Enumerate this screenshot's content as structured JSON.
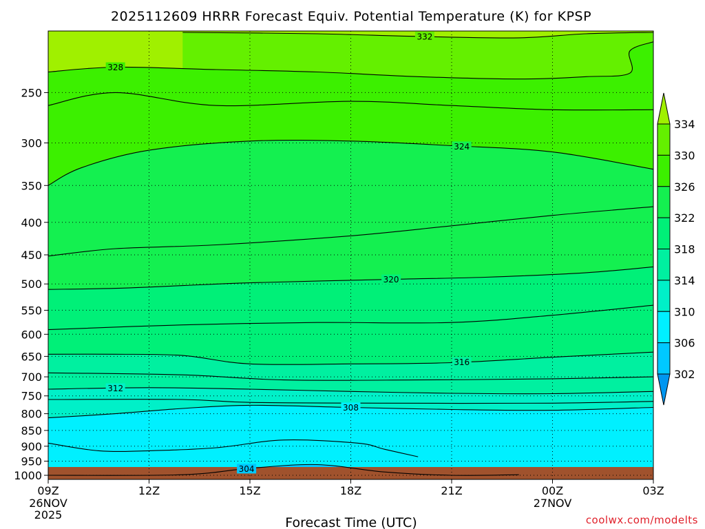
{
  "chart_data": {
    "type": "contour",
    "title": "2025112609 HRRR Forecast Equiv. Potential Temperature (K) for KPSP",
    "xlabel": "Forecast Time (UTC)",
    "ylabel": "",
    "x_tick_labels": [
      "09Z",
      "12Z",
      "15Z",
      "18Z",
      "21Z",
      "00Z",
      "03Z"
    ],
    "x_tick_hours": [
      0,
      3,
      6,
      9,
      12,
      15,
      18
    ],
    "x_date_labels": [
      {
        "hour": 0,
        "lines": [
          "26NOV",
          "2025"
        ]
      },
      {
        "hour": 15,
        "lines": [
          "27NOV"
        ]
      }
    ],
    "xlim": [
      0,
      18
    ],
    "y_tick_labels": [
      250,
      300,
      350,
      400,
      450,
      500,
      550,
      600,
      650,
      700,
      750,
      800,
      850,
      900,
      950,
      1000
    ],
    "ylim": [
      1015,
      200
    ],
    "colorbar": {
      "levels": [
        302,
        306,
        310,
        314,
        318,
        322,
        326,
        330,
        334
      ],
      "tick_labels": [
        "302",
        "306",
        "310",
        "314",
        "318",
        "322",
        "326",
        "330",
        "334"
      ],
      "colors": [
        "#0096f0",
        "#00c8ff",
        "#00f0ff",
        "#00f0c8",
        "#00f0a0",
        "#00f078",
        "#14f050",
        "#3cf000",
        "#64f000",
        "#a0f000"
      ]
    },
    "contours": [
      {
        "level": 304,
        "label": "304",
        "label_hour": 5.9,
        "points": [
          [
            0,
            1000
          ],
          [
            4,
            998
          ],
          [
            6,
            975
          ],
          [
            8,
            962
          ],
          [
            10,
            988
          ],
          [
            12,
            1000
          ],
          [
            14,
            998
          ]
        ]
      },
      {
        "level": 308,
        "label": "308",
        "label_hour": 9,
        "points": [
          [
            0,
            812
          ],
          [
            2,
            800
          ],
          [
            4,
            785
          ],
          [
            6,
            776
          ],
          [
            9,
            782
          ],
          [
            12,
            788
          ],
          [
            15,
            790
          ],
          [
            18,
            782
          ]
        ]
      },
      {
        "level": 312,
        "label": "312",
        "label_hour": 2,
        "points": [
          [
            0,
            732
          ],
          [
            3,
            728
          ],
          [
            6,
            732
          ],
          [
            9,
            738
          ],
          [
            12,
            743
          ],
          [
            15,
            744
          ],
          [
            18,
            738
          ]
        ]
      },
      {
        "level": 316,
        "label": "316",
        "label_hour": 12.3,
        "points": [
          [
            0,
            645
          ],
          [
            2,
            645
          ],
          [
            4,
            648
          ],
          [
            6,
            668
          ],
          [
            9,
            668
          ],
          [
            12,
            665
          ],
          [
            15,
            652
          ],
          [
            18,
            640
          ]
        ]
      },
      {
        "level": 320,
        "label": "320",
        "label_hour": 10.2,
        "points": [
          [
            0,
            510
          ],
          [
            2,
            508
          ],
          [
            4,
            503
          ],
          [
            6,
            498
          ],
          [
            10,
            492
          ],
          [
            13,
            488
          ],
          [
            16,
            480
          ],
          [
            18,
            470
          ]
        ]
      },
      {
        "level": 324,
        "label": "324",
        "label_hour": 12.3,
        "points": [
          [
            0,
            350
          ],
          [
            1,
            328
          ],
          [
            3,
            308
          ],
          [
            6,
            298
          ],
          [
            9,
            298
          ],
          [
            12,
            303
          ],
          [
            15,
            310
          ],
          [
            18,
            330
          ]
        ]
      },
      {
        "level": 328,
        "label": "328",
        "label_hour": 2,
        "points": [
          [
            0,
            232
          ],
          [
            2,
            228
          ],
          [
            5,
            230
          ],
          [
            8,
            232
          ],
          [
            11,
            236
          ],
          [
            14,
            238
          ],
          [
            16,
            236
          ],
          [
            17.3,
            233
          ],
          [
            17.3,
            215
          ],
          [
            18,
            208
          ]
        ]
      },
      {
        "level": 332,
        "label": "332",
        "label_hour": 11.2,
        "points": [
          [
            4,
            201
          ],
          [
            8,
            202
          ],
          [
            11,
            204
          ],
          [
            14,
            205
          ],
          [
            16,
            202
          ],
          [
            18,
            201
          ]
        ]
      }
    ],
    "extra_contour_lines": [
      [
        [
          0,
          262
        ],
        [
          2,
          250
        ],
        [
          5,
          262
        ],
        [
          9,
          258
        ],
        [
          12,
          262
        ],
        [
          15,
          266
        ],
        [
          18,
          266
        ]
      ],
      [
        [
          0,
          452
        ],
        [
          2,
          440
        ],
        [
          5,
          434
        ],
        [
          9,
          420
        ],
        [
          12,
          405
        ],
        [
          15,
          390
        ],
        [
          18,
          378
        ]
      ],
      [
        [
          0,
          590
        ],
        [
          4,
          580
        ],
        [
          8,
          575
        ],
        [
          12,
          575
        ],
        [
          15,
          560
        ],
        [
          18,
          540
        ]
      ],
      [
        [
          0,
          690
        ],
        [
          4,
          695
        ],
        [
          7,
          708
        ],
        [
          11,
          708
        ],
        [
          15,
          705
        ],
        [
          18,
          700
        ]
      ],
      [
        [
          0,
          760
        ],
        [
          4,
          760
        ],
        [
          6,
          768
        ],
        [
          10,
          770
        ],
        [
          15,
          770
        ],
        [
          18,
          765
        ]
      ],
      [
        [
          0,
          890
        ],
        [
          1.5,
          915
        ],
        [
          3,
          915
        ],
        [
          5,
          905
        ],
        [
          7,
          880
        ],
        [
          9.2,
          890
        ],
        [
          10,
          910
        ],
        [
          11,
          935
        ]
      ]
    ],
    "terrain_label": "ground"
  },
  "credit": "coolwx.com/modelts"
}
